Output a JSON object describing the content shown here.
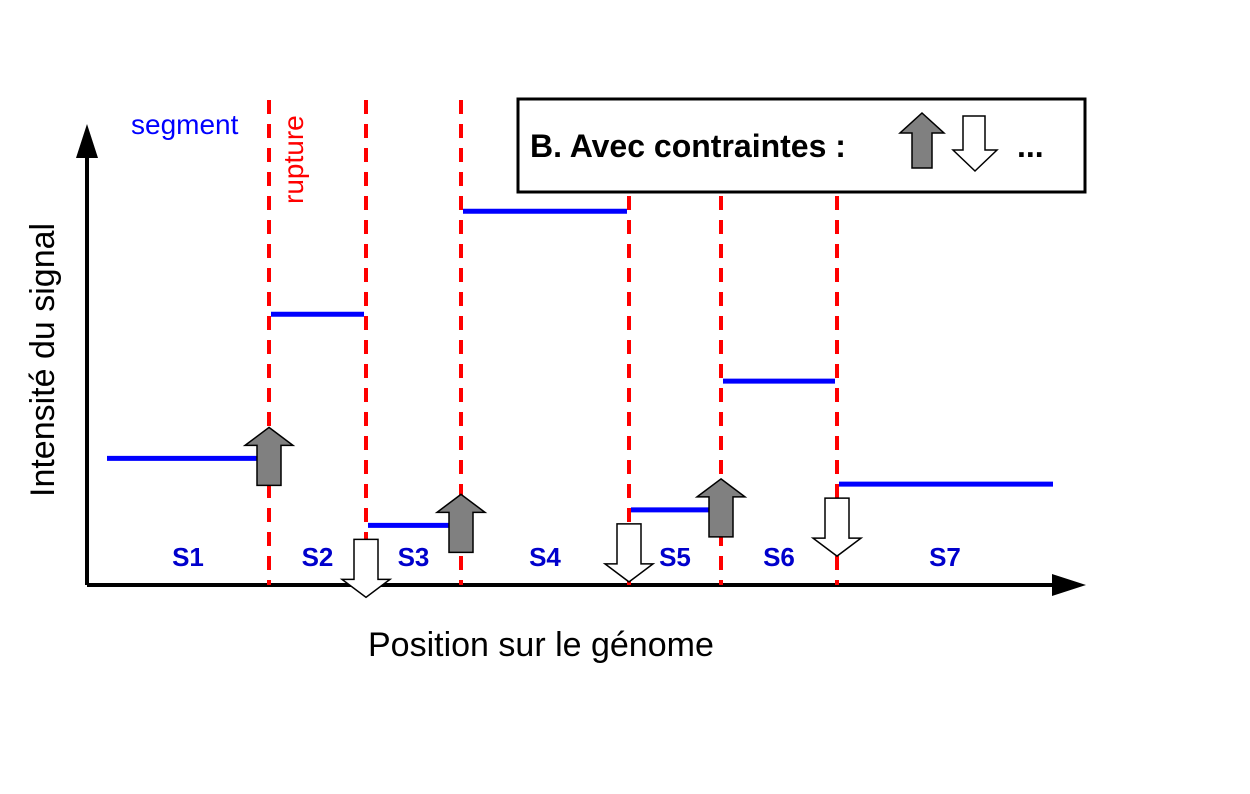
{
  "axes": {
    "y_label": "Intensité du signal",
    "x_label": "Position sur le génome"
  },
  "annotations": {
    "segment_label": "segment",
    "rupture_label": "rupture"
  },
  "legend_box": {
    "title": "B. Avec contraintes :",
    "ellipsis": "...",
    "icons": [
      "arrow-up-filled-icon",
      "arrow-down-outline-icon"
    ]
  },
  "colors": {
    "segment": "#0000ff",
    "rupture": "#ff0000",
    "arrow_up_fill": "#808080",
    "arrow_down_fill": "#ffffff",
    "segment_label": "#0000cc"
  },
  "segments": [
    {
      "name": "S1",
      "level": 2.4
    },
    {
      "name": "S2",
      "level": 5.2
    },
    {
      "name": "S3",
      "level": 1.1
    },
    {
      "name": "S4",
      "level": 7.2
    },
    {
      "name": "S5",
      "level": 1.4
    },
    {
      "name": "S6",
      "level": 3.9
    },
    {
      "name": "S7",
      "level": 1.9
    }
  ],
  "ruptures": [
    {
      "after": "S1",
      "direction": "up"
    },
    {
      "after": "S2",
      "direction": "down"
    },
    {
      "after": "S3",
      "direction": "up"
    },
    {
      "after": "S4",
      "direction": "down"
    },
    {
      "after": "S5",
      "direction": "up"
    },
    {
      "after": "S6",
      "direction": "down"
    }
  ]
}
